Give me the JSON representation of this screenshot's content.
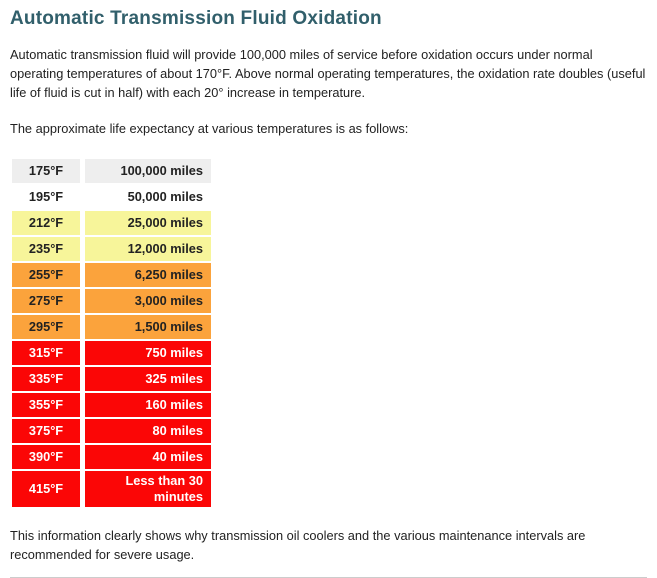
{
  "page": {
    "title": "Automatic Transmission Fluid Oxidation",
    "intro": "Automatic transmission fluid will provide 100,000 miles of service before oxidation occurs under normal operating temperatures of about 170°F. Above normal operating temperatures, the oxidation rate doubles (useful life of fluid is cut in half) with each 20° increase in temperature.",
    "table_lead": "The approximate life expectancy at various temperatures is as follows:",
    "footer": "This information clearly shows why transmission oil coolers and the various maintenance intervals are recommended for severe usage."
  },
  "colors": {
    "title_color": "#315f6b",
    "text_dark": "#222222",
    "text_light": "#ffffff",
    "row_gray": "#eeeeee",
    "row_white": "#ffffff",
    "row_yellow": "#f7f59a",
    "row_orange": "#fba33c",
    "row_red": "#fb0606"
  },
  "table": {
    "columns": [
      "temperature",
      "life_expectancy"
    ],
    "rows": [
      {
        "temp": "175°F",
        "life": "100,000 miles",
        "level": "gray"
      },
      {
        "temp": "195°F",
        "life": "50,000 miles",
        "level": "white"
      },
      {
        "temp": "212°F",
        "life": "25,000 miles",
        "level": "yellow"
      },
      {
        "temp": "235°F",
        "life": "12,000 miles",
        "level": "yellow"
      },
      {
        "temp": "255°F",
        "life": "6,250 miles",
        "level": "orange"
      },
      {
        "temp": "275°F",
        "life": "3,000 miles",
        "level": "orange"
      },
      {
        "temp": "295°F",
        "life": "1,500 miles",
        "level": "orange"
      },
      {
        "temp": "315°F",
        "life": "750 miles",
        "level": "red"
      },
      {
        "temp": "335°F",
        "life": "325 miles",
        "level": "red"
      },
      {
        "temp": "355°F",
        "life": "160 miles",
        "level": "red"
      },
      {
        "temp": "375°F",
        "life": "80 miles",
        "level": "red"
      },
      {
        "temp": "390°F",
        "life": "40 miles",
        "level": "red"
      },
      {
        "temp": "415°F",
        "life": "Less than 30 minutes",
        "level": "red"
      }
    ]
  }
}
